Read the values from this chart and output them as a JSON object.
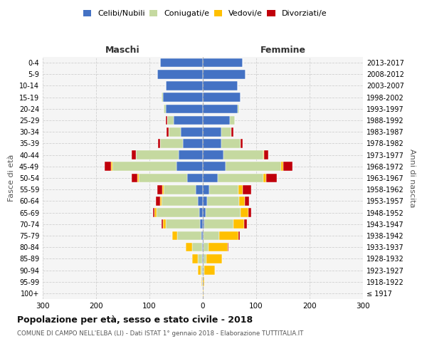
{
  "age_groups": [
    "100+",
    "95-99",
    "90-94",
    "85-89",
    "80-84",
    "75-79",
    "70-74",
    "65-69",
    "60-64",
    "55-59",
    "50-54",
    "45-49",
    "40-44",
    "35-39",
    "30-34",
    "25-29",
    "20-24",
    "15-19",
    "10-14",
    "5-9",
    "0-4"
  ],
  "birth_years": [
    "≤ 1917",
    "1918-1922",
    "1923-1927",
    "1928-1932",
    "1933-1937",
    "1938-1942",
    "1943-1947",
    "1948-1952",
    "1953-1957",
    "1958-1962",
    "1963-1967",
    "1968-1972",
    "1973-1977",
    "1978-1982",
    "1983-1987",
    "1988-1992",
    "1993-1997",
    "1998-2002",
    "2003-2007",
    "2008-2012",
    "2013-2017"
  ],
  "male_celibi": [
    0,
    1,
    1,
    2,
    2,
    3,
    5,
    7,
    9,
    14,
    30,
    50,
    45,
    38,
    42,
    55,
    70,
    75,
    70,
    85,
    80
  ],
  "male_coniugati": [
    0,
    1,
    3,
    8,
    18,
    45,
    65,
    80,
    68,
    60,
    90,
    120,
    80,
    42,
    22,
    12,
    4,
    2,
    0,
    0,
    0
  ],
  "male_vedovi": [
    0,
    1,
    5,
    10,
    12,
    10,
    5,
    4,
    3,
    2,
    3,
    2,
    1,
    0,
    0,
    0,
    0,
    0,
    0,
    0,
    0
  ],
  "male_divorziati": [
    0,
    0,
    0,
    0,
    0,
    0,
    2,
    3,
    8,
    10,
    10,
    12,
    8,
    4,
    4,
    2,
    0,
    0,
    0,
    0,
    0
  ],
  "female_celibi": [
    0,
    0,
    0,
    1,
    1,
    1,
    2,
    5,
    8,
    12,
    28,
    42,
    38,
    35,
    35,
    50,
    65,
    70,
    65,
    80,
    75
  ],
  "female_coniugati": [
    0,
    0,
    2,
    5,
    10,
    30,
    55,
    65,
    60,
    55,
    85,
    105,
    75,
    35,
    18,
    10,
    3,
    1,
    0,
    0,
    0
  ],
  "female_vedovi": [
    1,
    2,
    20,
    30,
    35,
    35,
    20,
    15,
    10,
    8,
    5,
    3,
    1,
    0,
    0,
    0,
    0,
    0,
    0,
    0,
    0
  ],
  "female_divorziati": [
    0,
    0,
    0,
    0,
    2,
    3,
    5,
    5,
    8,
    16,
    20,
    18,
    8,
    5,
    4,
    0,
    0,
    0,
    0,
    0,
    0
  ],
  "colors": {
    "celibi": "#4472C4",
    "coniugati": "#c5d9a0",
    "vedovi": "#ffc000",
    "divorziati": "#c0000b"
  },
  "title": "Popolazione per età, sesso e stato civile - 2018",
  "subtitle": "COMUNE DI CAMPO NELL'ELBA (LI) - Dati ISTAT 1° gennaio 2018 - Elaborazione TUTTITALIA.IT",
  "xlabel_left": "Maschi",
  "xlabel_right": "Femmine",
  "ylabel_left": "Fasce di età",
  "ylabel_right": "Anni di nascita",
  "xlim": 300,
  "background_color": "#ffffff",
  "grid_color": "#cccccc"
}
